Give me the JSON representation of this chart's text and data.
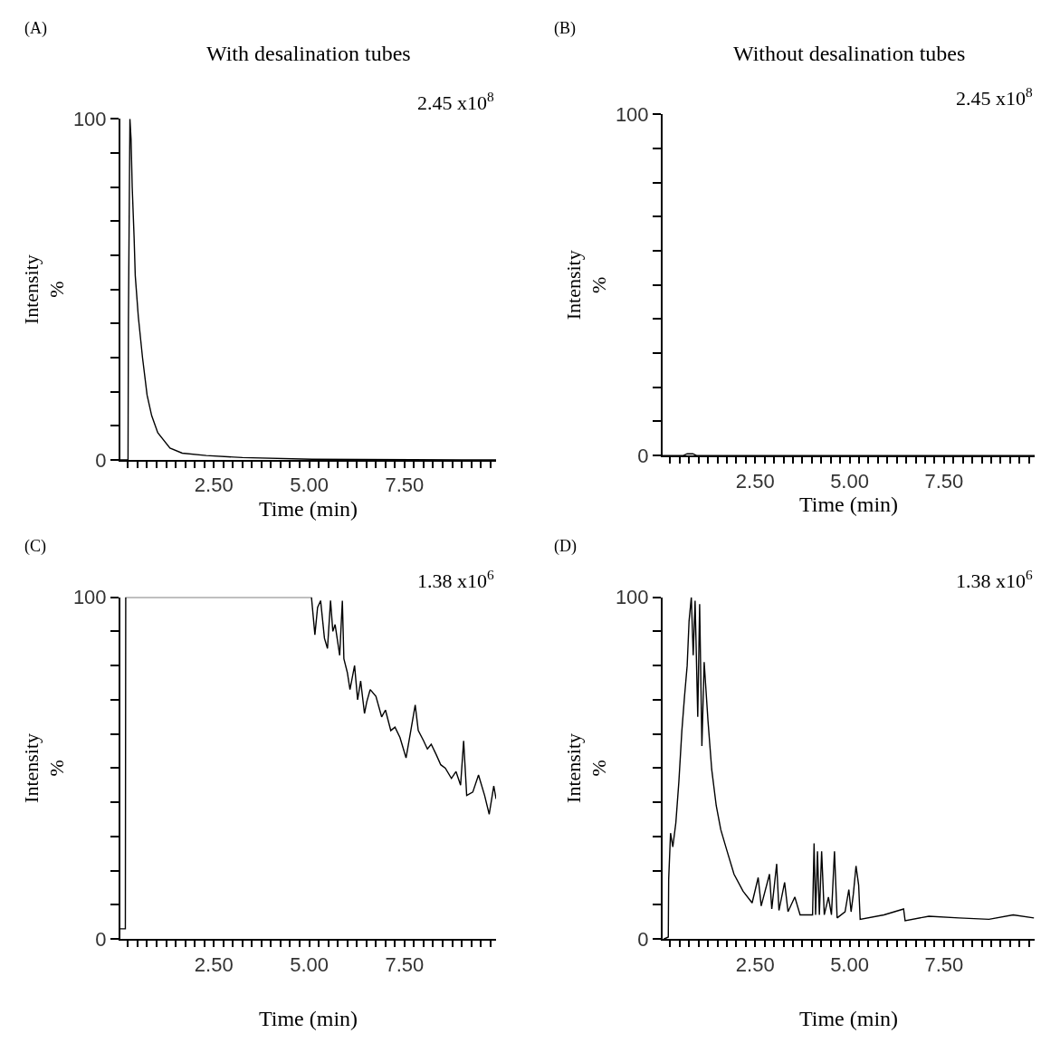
{
  "chart_data": [
    {
      "type": "line",
      "title": "With desalination tubes",
      "xlabel": "Time (min)",
      "ylabel": "Intensity\n%",
      "annotations": [
        "(A)",
        "2.45 x10$^{8}$"
      ],
      "marker": "none",
      "line_style": "solid",
      "xlim": [
        0.05,
        9.9
      ],
      "ylim": [
        0,
        100
      ],
      "xticks": [
        {
          "value": 0.25,
          "label": null
        },
        {
          "value": 0.5,
          "label": null
        },
        {
          "value": 0.75,
          "label": null
        },
        {
          "value": 1,
          "label": null
        },
        {
          "value": 1.25,
          "label": null
        },
        {
          "value": 1.5,
          "label": null
        },
        {
          "value": 1.75,
          "label": null
        },
        {
          "value": 2,
          "label": null
        },
        {
          "value": 2.25,
          "label": null
        },
        {
          "value": 2.5,
          "label": "2.50"
        },
        {
          "value": 2.75,
          "label": null
        },
        {
          "value": 3,
          "label": null
        },
        {
          "value": 3.25,
          "label": null
        },
        {
          "value": 3.5,
          "label": null
        },
        {
          "value": 3.75,
          "label": null
        },
        {
          "value": 4,
          "label": null
        },
        {
          "value": 4.25,
          "label": null
        },
        {
          "value": 4.5,
          "label": null
        },
        {
          "value": 4.75,
          "label": null
        },
        {
          "value": 5,
          "label": "5.00"
        },
        {
          "value": 5.25,
          "label": null
        },
        {
          "value": 5.5,
          "label": null
        },
        {
          "value": 5.75,
          "label": null
        },
        {
          "value": 6,
          "label": null
        },
        {
          "value": 6.25,
          "label": null
        },
        {
          "value": 6.5,
          "label": null
        },
        {
          "value": 6.75,
          "label": null
        },
        {
          "value": 7,
          "label": null
        },
        {
          "value": 7.25,
          "label": null
        },
        {
          "value": 7.5,
          "label": "7.50"
        },
        {
          "value": 7.75,
          "label": null
        },
        {
          "value": 8,
          "label": null
        },
        {
          "value": 8.25,
          "label": null
        },
        {
          "value": 8.5,
          "label": null
        },
        {
          "value": 8.75,
          "label": null
        },
        {
          "value": 9,
          "label": null
        },
        {
          "value": 9.25,
          "label": null
        },
        {
          "value": 9.5,
          "label": null
        },
        {
          "value": 9.75,
          "label": null
        }
      ],
      "yticks": [
        0,
        {
          "value": 10,
          "label": null
        },
        {
          "value": 20,
          "label": null
        },
        {
          "value": 30,
          "label": null
        },
        {
          "value": 40,
          "label": null
        },
        {
          "value": 50,
          "label": null
        },
        {
          "value": 60,
          "label": null
        },
        {
          "value": 70,
          "label": null
        },
        {
          "value": 80,
          "label": null
        },
        {
          "value": 90,
          "label": null
        },
        100
      ],
      "series": [
        {
          "color": "#000000",
          "x": [
            0.05,
            0.25,
            0.26,
            0.3,
            0.33,
            0.36,
            0.41,
            0.44,
            0.52,
            0.63,
            0.75,
            0.87,
            1.03,
            1.35,
            1.67,
            2.3,
            3.25,
            5.08,
            9.9
          ],
          "values": [
            0,
            0,
            40,
            100,
            94,
            80,
            65,
            54,
            42,
            30,
            19,
            13,
            8,
            3.5,
            2,
            1.3,
            0.7,
            0.2,
            0
          ]
        }
      ]
    },
    {
      "type": "line",
      "title": "Without desalination tubes",
      "xlabel": "Time (min)",
      "ylabel": "Intensity\n%",
      "annotations": [
        "(B)",
        "2.45 x10$^{8}$"
      ],
      "marker": "none",
      "line_style": "solid",
      "xlim": [
        0.05,
        9.9
      ],
      "ylim": [
        0,
        100
      ],
      "xticks": [
        {
          "value": 0.25,
          "label": null
        },
        {
          "value": 0.5,
          "label": null
        },
        {
          "value": 0.75,
          "label": null
        },
        {
          "value": 1,
          "label": null
        },
        {
          "value": 1.25,
          "label": null
        },
        {
          "value": 1.5,
          "label": null
        },
        {
          "value": 1.75,
          "label": null
        },
        {
          "value": 2,
          "label": null
        },
        {
          "value": 2.25,
          "label": null
        },
        {
          "value": 2.5,
          "label": "2.50"
        },
        {
          "value": 2.75,
          "label": null
        },
        {
          "value": 3,
          "label": null
        },
        {
          "value": 3.25,
          "label": null
        },
        {
          "value": 3.5,
          "label": null
        },
        {
          "value": 3.75,
          "label": null
        },
        {
          "value": 4,
          "label": null
        },
        {
          "value": 4.25,
          "label": null
        },
        {
          "value": 4.5,
          "label": null
        },
        {
          "value": 4.75,
          "label": null
        },
        {
          "value": 5,
          "label": "5.00"
        },
        {
          "value": 5.25,
          "label": null
        },
        {
          "value": 5.5,
          "label": null
        },
        {
          "value": 5.75,
          "label": null
        },
        {
          "value": 6,
          "label": null
        },
        {
          "value": 6.25,
          "label": null
        },
        {
          "value": 6.5,
          "label": null
        },
        {
          "value": 6.75,
          "label": null
        },
        {
          "value": 7,
          "label": null
        },
        {
          "value": 7.25,
          "label": null
        },
        {
          "value": 7.5,
          "label": "7.50"
        },
        {
          "value": 7.75,
          "label": null
        },
        {
          "value": 8,
          "label": null
        },
        {
          "value": 8.25,
          "label": null
        },
        {
          "value": 8.5,
          "label": null
        },
        {
          "value": 8.75,
          "label": null
        },
        {
          "value": 9,
          "label": null
        },
        {
          "value": 9.25,
          "label": null
        },
        {
          "value": 9.5,
          "label": null
        },
        {
          "value": 9.75,
          "label": null
        }
      ],
      "yticks": [
        0,
        {
          "value": 10,
          "label": null
        },
        {
          "value": 20,
          "label": null
        },
        {
          "value": 30,
          "label": null
        },
        {
          "value": 40,
          "label": null
        },
        {
          "value": 50,
          "label": null
        },
        {
          "value": 60,
          "label": null
        },
        {
          "value": 70,
          "label": null
        },
        {
          "value": 80,
          "label": null
        },
        {
          "value": 90,
          "label": null
        },
        100
      ],
      "series": [
        {
          "color": "#000000",
          "x": [
            0.05,
            0.6,
            0.7,
            0.85,
            0.95,
            9.9
          ],
          "values": [
            0,
            0,
            0.5,
            0.5,
            0,
            0
          ]
        }
      ]
    },
    {
      "type": "line",
      "xlabel": "Time (min)",
      "ylabel": "Intensity\n%",
      "annotations": [
        "(C)",
        "1.38 x10$^{6}$"
      ],
      "marker": "none",
      "line_style": "solid",
      "xlim": [
        0.05,
        9.9
      ],
      "ylim": [
        0,
        100
      ],
      "xticks": [
        {
          "value": 0.25,
          "label": null
        },
        {
          "value": 0.5,
          "label": null
        },
        {
          "value": 0.75,
          "label": null
        },
        {
          "value": 1,
          "label": null
        },
        {
          "value": 1.25,
          "label": null
        },
        {
          "value": 1.5,
          "label": null
        },
        {
          "value": 1.75,
          "label": null
        },
        {
          "value": 2,
          "label": null
        },
        {
          "value": 2.25,
          "label": null
        },
        {
          "value": 2.5,
          "label": "2.50"
        },
        {
          "value": 2.75,
          "label": null
        },
        {
          "value": 3,
          "label": null
        },
        {
          "value": 3.25,
          "label": null
        },
        {
          "value": 3.5,
          "label": null
        },
        {
          "value": 3.75,
          "label": null
        },
        {
          "value": 4,
          "label": null
        },
        {
          "value": 4.25,
          "label": null
        },
        {
          "value": 4.5,
          "label": null
        },
        {
          "value": 4.75,
          "label": null
        },
        {
          "value": 5,
          "label": "5.00"
        },
        {
          "value": 5.25,
          "label": null
        },
        {
          "value": 5.5,
          "label": null
        },
        {
          "value": 5.75,
          "label": null
        },
        {
          "value": 6,
          "label": null
        },
        {
          "value": 6.25,
          "label": null
        },
        {
          "value": 6.5,
          "label": null
        },
        {
          "value": 6.75,
          "label": null
        },
        {
          "value": 7,
          "label": null
        },
        {
          "value": 7.25,
          "label": null
        },
        {
          "value": 7.5,
          "label": "7.50"
        },
        {
          "value": 7.75,
          "label": null
        },
        {
          "value": 8,
          "label": null
        },
        {
          "value": 8.25,
          "label": null
        },
        {
          "value": 8.5,
          "label": null
        },
        {
          "value": 8.75,
          "label": null
        },
        {
          "value": 9,
          "label": null
        },
        {
          "value": 9.25,
          "label": null
        },
        {
          "value": 9.5,
          "label": null
        },
        {
          "value": 9.75,
          "label": null
        }
      ],
      "yticks": [
        0,
        {
          "value": 10,
          "label": null
        },
        {
          "value": 20,
          "label": null
        },
        {
          "value": 30,
          "label": null
        },
        {
          "value": 40,
          "label": null
        },
        {
          "value": 50,
          "label": null
        },
        {
          "value": 60,
          "label": null
        },
        {
          "value": 70,
          "label": null
        },
        {
          "value": 80,
          "label": null
        },
        {
          "value": 90,
          "label": null
        },
        100
      ],
      "series": [
        {
          "color": "#000000",
          "x": [
            0.05,
            0.18,
            0.19,
            5.06,
            5.15,
            5.22,
            5.3,
            5.4,
            5.48,
            5.56,
            5.62,
            5.68,
            5.8,
            5.87,
            5.91,
            6.0,
            6.07,
            6.19,
            6.27,
            6.35,
            6.45,
            6.51,
            6.6,
            6.75,
            6.9,
            7.0,
            7.14,
            7.25,
            7.38,
            7.46,
            7.54,
            7.65,
            7.78,
            7.86,
            8.0,
            8.1,
            8.2,
            8.33,
            8.45,
            8.57,
            8.73,
            8.85,
            8.97,
            9.05,
            9.13,
            9.29,
            9.44,
            9.6,
            9.72,
            9.84,
            9.9
          ],
          "values": [
            3,
            3,
            100,
            100,
            89,
            97,
            99,
            88,
            85,
            99,
            90,
            92,
            83,
            99,
            82,
            78,
            73,
            80,
            70,
            75.5,
            66,
            69.4,
            73,
            71,
            65,
            67,
            61,
            62,
            59,
            56,
            53,
            60,
            68.5,
            61,
            58,
            55.6,
            57,
            54,
            51,
            50,
            47,
            49,
            45,
            58,
            42,
            43,
            48,
            42,
            36.5,
            44.8,
            41
          ]
        }
      ]
    },
    {
      "type": "line",
      "xlabel": "Time (min)",
      "ylabel": "Intensity\n%",
      "annotations": [
        "(D)",
        "1.38 x10$^{6}$"
      ],
      "marker": "none",
      "line_style": "solid",
      "xlim": [
        0.05,
        9.9
      ],
      "ylim": [
        0,
        100
      ],
      "xticks": [
        {
          "value": 0.25,
          "label": null
        },
        {
          "value": 0.5,
          "label": null
        },
        {
          "value": 0.75,
          "label": null
        },
        {
          "value": 1,
          "label": null
        },
        {
          "value": 1.25,
          "label": null
        },
        {
          "value": 1.5,
          "label": null
        },
        {
          "value": 1.75,
          "label": null
        },
        {
          "value": 2,
          "label": null
        },
        {
          "value": 2.25,
          "label": null
        },
        {
          "value": 2.5,
          "label": "2.50"
        },
        {
          "value": 2.75,
          "label": null
        },
        {
          "value": 3,
          "label": null
        },
        {
          "value": 3.25,
          "label": null
        },
        {
          "value": 3.5,
          "label": null
        },
        {
          "value": 3.75,
          "label": null
        },
        {
          "value": 4,
          "label": null
        },
        {
          "value": 4.25,
          "label": null
        },
        {
          "value": 4.5,
          "label": null
        },
        {
          "value": 4.75,
          "label": null
        },
        {
          "value": 5,
          "label": "5.00"
        },
        {
          "value": 5.25,
          "label": null
        },
        {
          "value": 5.5,
          "label": null
        },
        {
          "value": 5.75,
          "label": null
        },
        {
          "value": 6,
          "label": null
        },
        {
          "value": 6.25,
          "label": null
        },
        {
          "value": 6.5,
          "label": null
        },
        {
          "value": 6.75,
          "label": null
        },
        {
          "value": 7,
          "label": null
        },
        {
          "value": 7.25,
          "label": null
        },
        {
          "value": 7.5,
          "label": "7.50"
        },
        {
          "value": 7.75,
          "label": null
        },
        {
          "value": 8,
          "label": null
        },
        {
          "value": 8.25,
          "label": null
        },
        {
          "value": 8.5,
          "label": null
        },
        {
          "value": 8.75,
          "label": null
        },
        {
          "value": 9,
          "label": null
        },
        {
          "value": 9.25,
          "label": null
        },
        {
          "value": 9.5,
          "label": null
        },
        {
          "value": 9.75,
          "label": null
        }
      ],
      "yticks": [
        0,
        {
          "value": 10,
          "label": null
        },
        {
          "value": 20,
          "label": null
        },
        {
          "value": 30,
          "label": null
        },
        {
          "value": 40,
          "label": null
        },
        {
          "value": 50,
          "label": null
        },
        {
          "value": 60,
          "label": null
        },
        {
          "value": 70,
          "label": null
        },
        {
          "value": 80,
          "label": null
        },
        {
          "value": 90,
          "label": null
        },
        100
      ],
      "series": [
        {
          "color": "#000000",
          "x": [
            0.08,
            0.2,
            0.21,
            0.26,
            0.32,
            0.4,
            0.48,
            0.56,
            0.63,
            0.7,
            0.75,
            0.81,
            0.86,
            0.91,
            0.98,
            1.03,
            1.09,
            1.15,
            1.25,
            1.35,
            1.47,
            1.59,
            1.75,
            1.94,
            2.18,
            2.42,
            2.58,
            2.66,
            2.88,
            2.94,
            3.07,
            3.13,
            3.28,
            3.37,
            3.55,
            3.69,
            3.93,
            4.02,
            4.06,
            4.1,
            4.15,
            4.2,
            4.26,
            4.33,
            4.44,
            4.52,
            4.6,
            4.67,
            4.88,
            4.98,
            5.04,
            5.1,
            5.17,
            5.24,
            5.28,
            5.91,
            6.43,
            6.47,
            7.1,
            7.9,
            8.69,
            9.33,
            9.88
          ],
          "values": [
            0,
            0.6,
            17.5,
            31,
            27,
            34,
            46,
            61,
            71,
            80,
            93,
            100,
            83,
            99,
            65,
            98,
            56.5,
            81,
            64,
            49.6,
            39,
            32,
            26,
            19,
            14,
            10.6,
            18,
            9.7,
            19,
            8.8,
            22,
            8.4,
            16.6,
            8,
            12.3,
            7.1,
            7.1,
            7.1,
            28,
            7.1,
            25.7,
            7.1,
            25.7,
            7.1,
            12.3,
            7.1,
            25.7,
            6.2,
            8,
            14.5,
            8,
            13.2,
            21.4,
            15.8,
            5.8,
            7.1,
            8.8,
            5.4,
            6.7,
            6.2,
            5.8,
            7.1,
            6.2
          ]
        }
      ]
    }
  ]
}
